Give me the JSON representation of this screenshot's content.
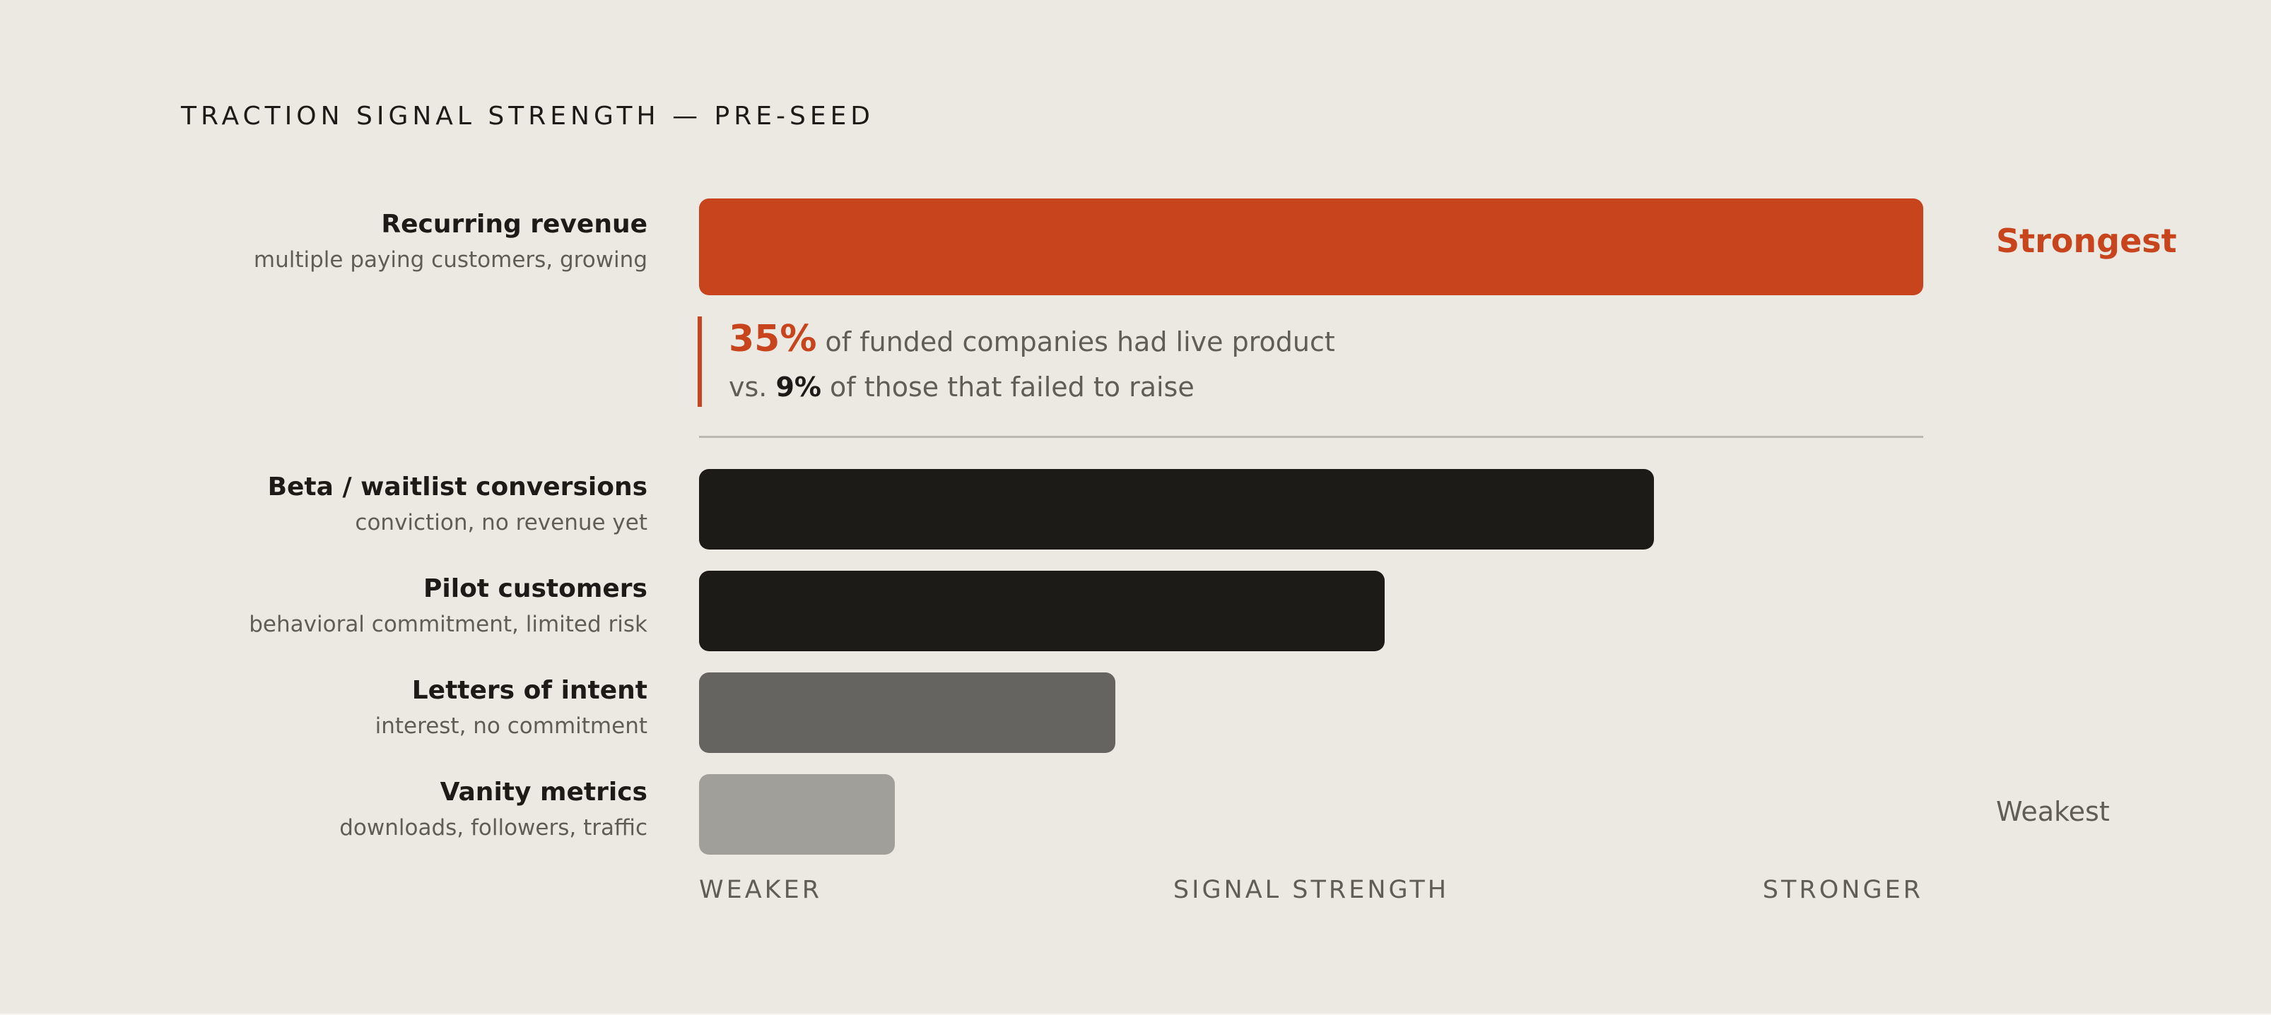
{
  "title": "TRACTION SIGNAL STRENGTH — PRE-SEED",
  "chart_data": {
    "type": "bar",
    "orientation": "horizontal",
    "title": "TRACTION SIGNAL STRENGTH — PRE-SEED",
    "xlabel": "SIGNAL STRENGTH",
    "xlim": [
      0,
      100
    ],
    "grid": false,
    "axis_labels": {
      "left": "WEAKER",
      "center": "SIGNAL STRENGTH",
      "right": "STRONGER"
    },
    "categories": [
      "Recurring revenue",
      "Beta / waitlist conversions",
      "Pilot customers",
      "Letters of intent",
      "Vanity metrics"
    ],
    "sublabels": [
      "multiple paying customers, growing",
      "conviction, no revenue yet",
      "behavioral commitment, limited risk",
      "interest, no commitment",
      "downloads, followers, traffic"
    ],
    "values": [
      100,
      78,
      56,
      34,
      16
    ],
    "colors": [
      "#C7441D",
      "#1C1B18",
      "#1C1B18",
      "#656460",
      "#A19F9A"
    ],
    "end_labels": {
      "top": "Strongest",
      "bottom": "Weakest"
    },
    "annotation": {
      "big_value": "35%",
      "line1_rest": " of funded companies had live product",
      "line2_prefix": "vs. ",
      "line2_value": "9%",
      "line2_rest": " of those that failed to raise"
    }
  }
}
